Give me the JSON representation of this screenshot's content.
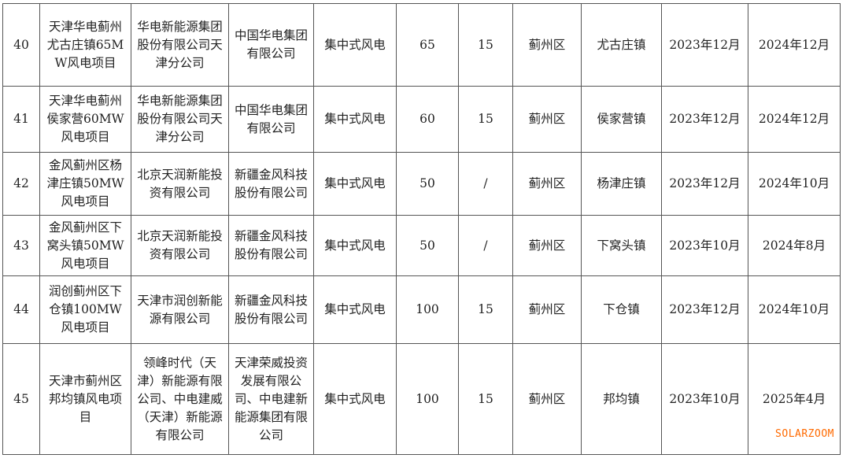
{
  "rows": [
    {
      "no": "40",
      "project": "天津华电蓟州尤古庄镇65MW风电项目",
      "developer": "华电新能源集团股份有限公司天津分公司",
      "group": "中国华电集团有限公司",
      "type": "集中式风电",
      "capacity": "65",
      "storage": "15",
      "district": "蓟州区",
      "town": "尤古庄镇",
      "start": "2023年12月",
      "finish": "2024年12月"
    },
    {
      "no": "41",
      "project": "天津华电蓟州侯家营60MW风电项目",
      "developer": "华电新能源集团股份有限公司天津分公司",
      "group": "中国华电集团有限公司",
      "type": "集中式风电",
      "capacity": "60",
      "storage": "15",
      "district": "蓟州区",
      "town": "侯家营镇",
      "start": "2023年12月",
      "finish": "2024年12月"
    },
    {
      "no": "42",
      "project": "金风蓟州区杨津庄镇50MW风电项目",
      "developer": "北京天润新能投资有限公司",
      "group": "新疆金风科技股份有限公司",
      "type": "集中式风电",
      "capacity": "50",
      "storage": "/",
      "district": "蓟州区",
      "town": "杨津庄镇",
      "start": "2023年12月",
      "finish": "2024年10月"
    },
    {
      "no": "43",
      "project": "金风蓟州区下窝头镇50MW风电项目",
      "developer": "北京天润新能投资有限公司",
      "group": "新疆金风科技股份有限公司",
      "type": "集中式风电",
      "capacity": "50",
      "storage": "/",
      "district": "蓟州区",
      "town": "下窝头镇",
      "start": "2023年10月",
      "finish": "2024年8月"
    },
    {
      "no": "44",
      "project": "润创蓟州区下仓镇100MW风电项目",
      "developer": "天津市润创新能源有限公司",
      "group": "新疆金风科技股份有限公司",
      "type": "集中式风电",
      "capacity": "100",
      "storage": "15",
      "district": "蓟州区",
      "town": "下仓镇",
      "start": "2023年12月",
      "finish": "2024年10月"
    },
    {
      "no": "45",
      "project": "天津市蓟州区邦均镇风电项目",
      "developer": "领峰时代（天津）新能源有限公司、中电建威（天津）新能源有限公司",
      "group": "天津荣威投资发展有限公司、中电建新能源集团有限公司",
      "type": "集中式风电",
      "capacity": "100",
      "storage": "15",
      "district": "蓟州区",
      "town": "邦均镇",
      "start": "2023年10月",
      "finish": "2025年4月"
    }
  ],
  "watermark": "SOLARZOOM",
  "colors": {
    "watermark": "#ff6a00",
    "border": "#555555"
  }
}
